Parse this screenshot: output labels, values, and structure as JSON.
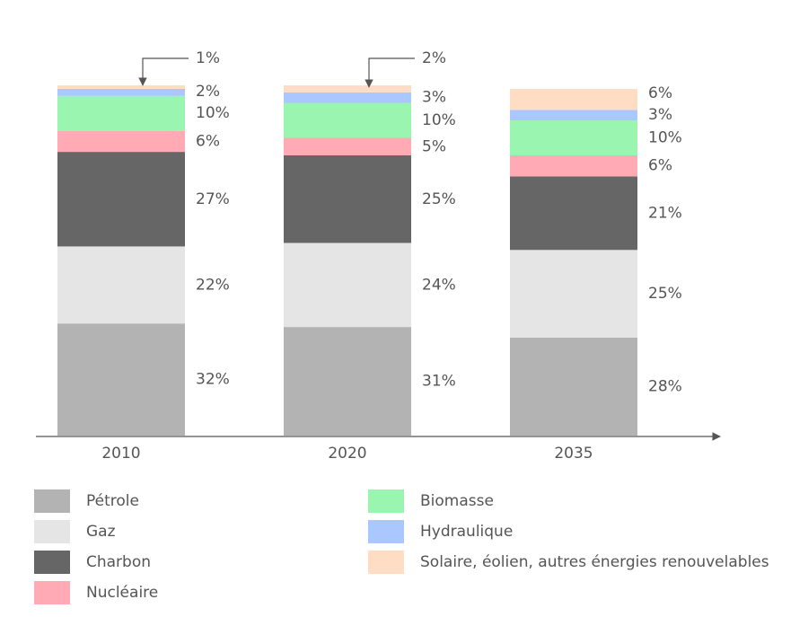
{
  "chart_data": {
    "type": "stacked_bar",
    "categories": [
      "2010",
      "2020",
      "2035"
    ],
    "series": [
      {
        "name": "Pétrole",
        "color": "#b3b3b3",
        "values": [
          32,
          31,
          28
        ],
        "value_labels": [
          "32%",
          "31%",
          "28%"
        ]
      },
      {
        "name": "Gaz",
        "color": "#e5e5e5",
        "values": [
          22,
          24,
          25
        ],
        "value_labels": [
          "22%",
          "24%",
          "25%"
        ]
      },
      {
        "name": "Charbon",
        "color": "#666666",
        "values": [
          27,
          25,
          21
        ],
        "value_labels": [
          "27%",
          "25%",
          "21%"
        ]
      },
      {
        "name": "Nucléaire",
        "color": "#ffaab4",
        "values": [
          6,
          5,
          6
        ],
        "value_labels": [
          "6%",
          "5%",
          "6%"
        ]
      },
      {
        "name": "Biomasse",
        "color": "#99f5b0",
        "values": [
          10,
          10,
          10
        ],
        "value_labels": [
          "10%",
          "10%",
          "10%"
        ]
      },
      {
        "name": "Hydraulique",
        "color": "#aac8ff",
        "values": [
          2,
          3,
          3
        ],
        "value_labels": [
          "2%",
          "3%",
          "3%"
        ]
      },
      {
        "name": "Solaire, éolien, autres énergies renouvelables",
        "color": "#ffddc4",
        "values": [
          1,
          2,
          6
        ],
        "value_labels": [
          "1%",
          "2%",
          "6%"
        ]
      }
    ]
  }
}
